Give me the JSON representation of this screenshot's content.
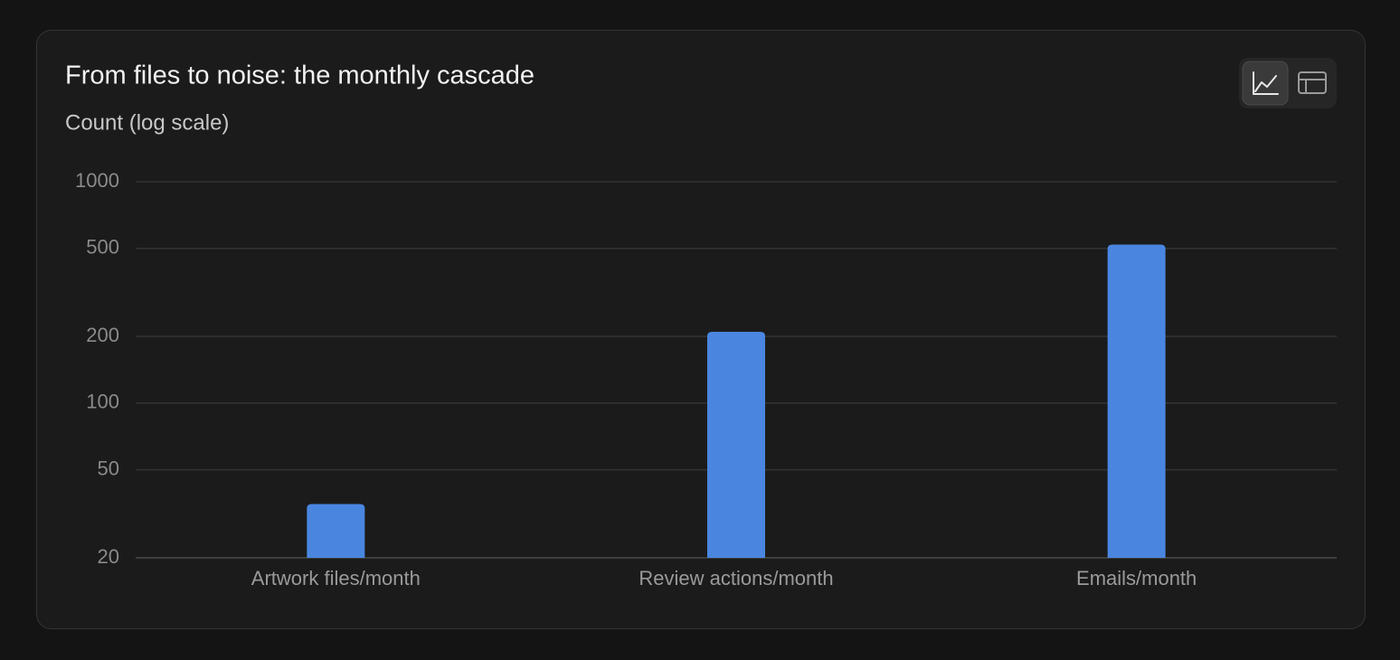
{
  "chart_data": {
    "type": "bar",
    "title": "From files to noise: the monthly cascade",
    "y_label": "Count (log scale)",
    "categories": [
      "Artwork files/month",
      "Review actions/month",
      "Emails/month"
    ],
    "values": [
      35,
      210,
      520
    ],
    "color": "#4a86e0",
    "log_scale": true,
    "ylim": [
      20,
      1000
    ],
    "yticks": [
      20,
      50,
      100,
      200,
      500,
      1000
    ],
    "grid": true
  }
}
